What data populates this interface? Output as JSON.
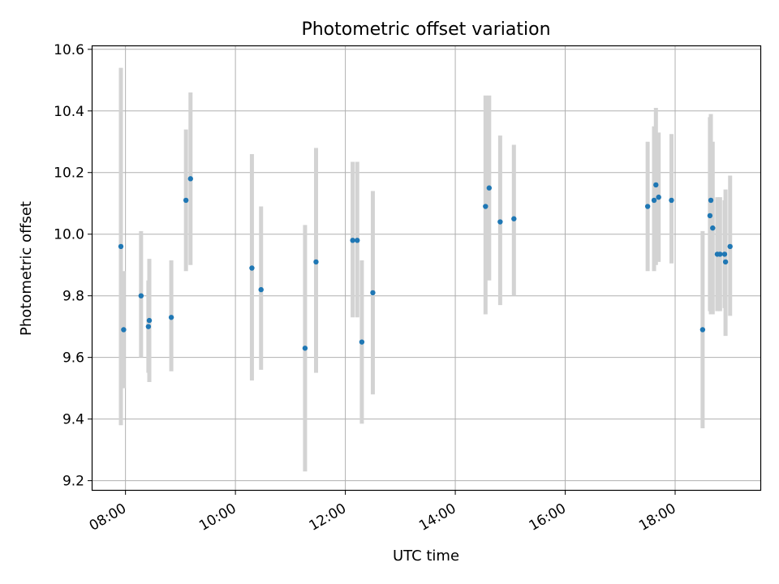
{
  "chart_data": {
    "type": "scatter",
    "title": "Photometric offset variation",
    "xlabel": "UTC time",
    "ylabel": "Photometric offset",
    "x_axis": {
      "unit": "hours",
      "range": [
        7.4,
        19.55
      ],
      "ticks": [
        8,
        10,
        12,
        14,
        16,
        18
      ],
      "tick_labels": [
        "08:00",
        "10:00",
        "12:00",
        "14:00",
        "16:00",
        "18:00"
      ]
    },
    "y_axis": {
      "range": [
        9.17,
        10.61
      ],
      "ticks": [
        9.2,
        9.4,
        9.6,
        9.8,
        10.0,
        10.2,
        10.4,
        10.6
      ],
      "tick_labels": [
        "9.2",
        "9.4",
        "9.6",
        "9.8",
        "10.0",
        "10.2",
        "10.4",
        "10.6"
      ]
    },
    "grid": true,
    "colors": {
      "point": "#1f77b4",
      "errorbar": "#d3d3d3",
      "grid": "#b0b0b0"
    },
    "points": [
      {
        "x": "07:55",
        "y": 9.96,
        "ylow": 9.38,
        "yhigh": 10.54
      },
      {
        "x": "07:58",
        "y": 9.69,
        "ylow": 9.5,
        "yhigh": 9.88
      },
      {
        "x": "08:17",
        "y": 9.8,
        "ylow": 9.6,
        "yhigh": 10.01
      },
      {
        "x": "08:25",
        "y": 9.7,
        "ylow": 9.55,
        "yhigh": 9.85
      },
      {
        "x": "08:26",
        "y": 9.72,
        "ylow": 9.52,
        "yhigh": 9.92
      },
      {
        "x": "08:50",
        "y": 9.73,
        "ylow": 9.555,
        "yhigh": 9.915
      },
      {
        "x": "09:06",
        "y": 10.11,
        "ylow": 9.88,
        "yhigh": 10.34
      },
      {
        "x": "09:11",
        "y": 10.18,
        "ylow": 9.9,
        "yhigh": 10.46
      },
      {
        "x": "10:18",
        "y": 9.89,
        "ylow": 9.525,
        "yhigh": 10.26
      },
      {
        "x": "10:28",
        "y": 9.82,
        "ylow": 9.56,
        "yhigh": 10.09
      },
      {
        "x": "11:16",
        "y": 9.63,
        "ylow": 9.23,
        "yhigh": 10.03
      },
      {
        "x": "11:28",
        "y": 9.91,
        "ylow": 9.55,
        "yhigh": 10.28
      },
      {
        "x": "12:08",
        "y": 9.98,
        "ylow": 9.73,
        "yhigh": 10.235
      },
      {
        "x": "12:13",
        "y": 9.98,
        "ylow": 9.73,
        "yhigh": 10.235
      },
      {
        "x": "12:18",
        "y": 9.65,
        "ylow": 9.385,
        "yhigh": 9.915
      },
      {
        "x": "12:30",
        "y": 9.81,
        "ylow": 9.48,
        "yhigh": 10.14
      },
      {
        "x": "14:33",
        "y": 10.09,
        "ylow": 9.74,
        "yhigh": 10.45
      },
      {
        "x": "14:37",
        "y": 10.15,
        "ylow": 9.85,
        "yhigh": 10.45
      },
      {
        "x": "14:49",
        "y": 10.04,
        "ylow": 9.77,
        "yhigh": 10.32
      },
      {
        "x": "15:04",
        "y": 10.05,
        "ylow": 9.8,
        "yhigh": 10.29
      },
      {
        "x": "17:30",
        "y": 10.09,
        "ylow": 9.88,
        "yhigh": 10.3
      },
      {
        "x": "17:37",
        "y": 10.11,
        "ylow": 9.88,
        "yhigh": 10.35
      },
      {
        "x": "17:39",
        "y": 10.16,
        "ylow": 9.9,
        "yhigh": 10.41
      },
      {
        "x": "17:42",
        "y": 10.12,
        "ylow": 9.91,
        "yhigh": 10.33
      },
      {
        "x": "17:56",
        "y": 10.11,
        "ylow": 9.905,
        "yhigh": 10.325
      },
      {
        "x": "18:30",
        "y": 9.69,
        "ylow": 9.37,
        "yhigh": 10.01
      },
      {
        "x": "18:38",
        "y": 10.06,
        "ylow": 9.75,
        "yhigh": 10.38
      },
      {
        "x": "18:39",
        "y": 10.11,
        "ylow": 9.74,
        "yhigh": 10.39
      },
      {
        "x": "18:41",
        "y": 10.02,
        "ylow": 9.74,
        "yhigh": 10.3
      },
      {
        "x": "18:46",
        "y": 9.935,
        "ylow": 9.75,
        "yhigh": 10.12
      },
      {
        "x": "18:49",
        "y": 9.935,
        "ylow": 9.75,
        "yhigh": 10.12
      },
      {
        "x": "18:54",
        "y": 9.935,
        "ylow": 9.76,
        "yhigh": 10.11
      },
      {
        "x": "18:55",
        "y": 9.91,
        "ylow": 9.67,
        "yhigh": 10.145
      },
      {
        "x": "19:00",
        "y": 9.96,
        "ylow": 9.735,
        "yhigh": 10.19
      }
    ]
  }
}
